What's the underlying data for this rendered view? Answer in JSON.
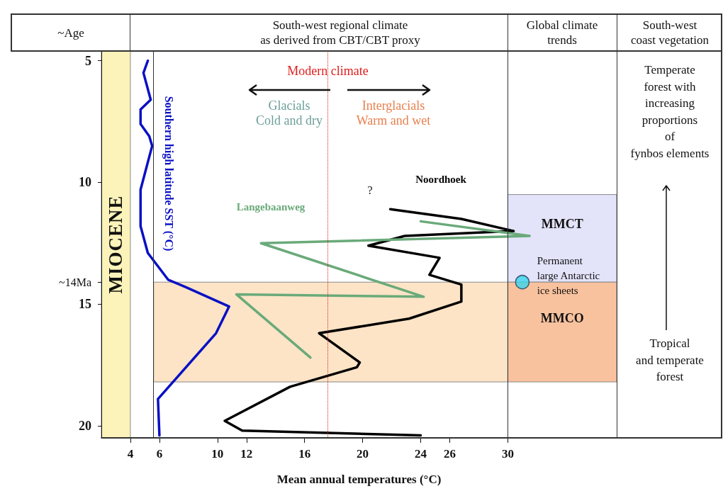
{
  "chart_data": {
    "type": "line",
    "xlabel": "Mean annual temperatures (°C)",
    "xlim": [
      2,
      37.5
    ],
    "xticks": [
      4,
      6,
      10,
      12,
      16,
      20,
      24,
      26,
      30
    ],
    "ylim": [
      20.5,
      4.6
    ],
    "yticks": [
      5,
      10,
      {
        "value": 14.1,
        "label": "~14Ma"
      },
      15,
      20
    ],
    "marker": "none",
    "series": [
      {
        "name": "Noordhoek",
        "color": "#000000",
        "x": [
          21.9,
          26.8,
          30.4,
          22.9,
          20.4,
          25.3,
          24.6,
          26.8,
          26.8,
          23.2,
          17.0,
          19.8,
          19.6,
          15.0,
          10.5,
          11.7,
          24.0
        ],
        "values": [
          11.1,
          11.5,
          12.0,
          12.2,
          12.6,
          13.1,
          13.8,
          14.2,
          14.9,
          15.6,
          16.2,
          17.4,
          17.6,
          18.4,
          19.8,
          20.2,
          20.4
        ]
      },
      {
        "name": "Langebaanweg",
        "color": "#6aaa7a",
        "x": [
          24.0,
          31.5,
          13.0,
          24.2,
          11.3,
          16.4
        ],
        "values": [
          11.6,
          12.2,
          12.5,
          14.7,
          14.6,
          17.2
        ]
      },
      {
        "name": "Southern high latitude SST (°C)",
        "color": "#0a10c4",
        "x": [
          5.2,
          4.9,
          5.4,
          4.7,
          4.7,
          5.3,
          5.5,
          4.7,
          4.7,
          5.2,
          6.6,
          7.8,
          10.8,
          9.9,
          5.9,
          6.0
        ],
        "values": [
          5.0,
          5.5,
          6.6,
          7.0,
          7.6,
          8.1,
          8.5,
          10.3,
          11.8,
          12.9,
          14.0,
          14.3,
          15.1,
          16.2,
          18.9,
          20.4
        ]
      },
      {
        "type": "scatter",
        "marker": "circle",
        "color": "#3ad4ec",
        "x": [
          31.0
        ],
        "values": [
          14.1
        ]
      }
    ],
    "bands": [
      {
        "axis": "x",
        "from": 2,
        "to": 4,
        "label": "MIOCENE",
        "color": "#fbf3b9"
      },
      {
        "axis": "y",
        "from": 14.1,
        "to": 18.2,
        "color": "#fde4c6"
      },
      {
        "axis": "y",
        "from": 10.5,
        "to": 14.1,
        "label": "MMCT",
        "color": "#e3e3fa"
      },
      {
        "axis": "y",
        "from": 14.1,
        "to": 18.2,
        "label": "MMCO",
        "color": "#f9c29e"
      }
    ],
    "ref_lines": [
      {
        "axis": "x",
        "value": 5.6,
        "color": "#333333"
      },
      {
        "axis": "x",
        "value": 30,
        "color": "#333333"
      },
      {
        "axis": "x",
        "value": 17.6,
        "label": "Modern climate",
        "color": "#e02020",
        "line_style": "dotted"
      }
    ],
    "annotations": [
      "~Age",
      "South-west regional climate\nas derived from CBT/CBT proxy",
      "Global climate\ntrends",
      "South-west\ncoast vegetation",
      "Glacials\nCold and dry",
      "Interglacials\nWarm and wet",
      "?",
      "Permanent\nlarge Antarctic\nice sheets",
      "Temperate\nforest with\nincreasing\nproportions\nof\nfynbos elements",
      "Tropical\nand temperate\nforest"
    ]
  }
}
